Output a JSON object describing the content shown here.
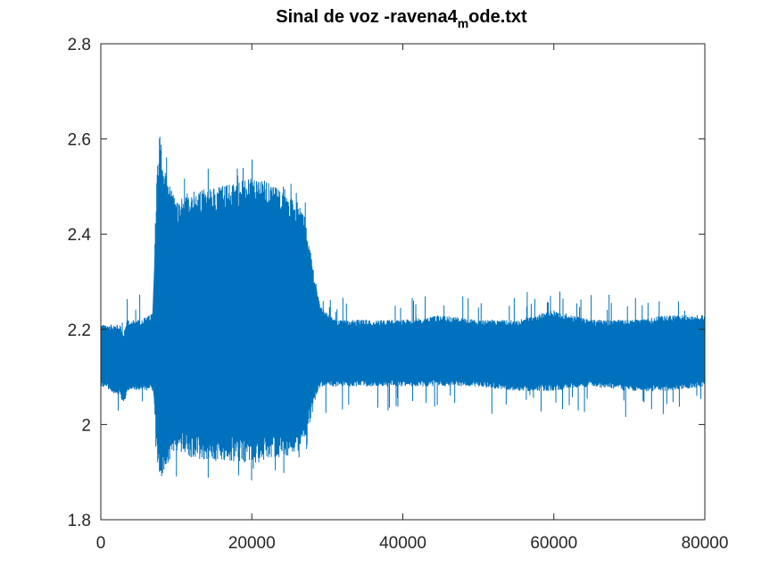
{
  "chart_data": {
    "type": "line",
    "title": {
      "main": "Sinal de voz -ravena4",
      "subscript": "m",
      "suffix": "ode.txt"
    },
    "xlabel": "",
    "ylabel": "",
    "xlim": [
      0,
      80000
    ],
    "ylim": [
      1.8,
      2.8
    ],
    "xticks": [
      0,
      20000,
      40000,
      60000,
      80000
    ],
    "xtick_labels": [
      "0",
      "20000",
      "40000",
      "60000",
      "80000"
    ],
    "yticks": [
      1.8,
      2.0,
      2.2,
      2.4,
      2.6,
      2.8
    ],
    "ytick_labels": [
      "1.8",
      "2",
      "2.2",
      "2.4",
      "2.6",
      "2.8"
    ],
    "grid": false,
    "box": true,
    "series_color": "#0072bd",
    "series": [
      {
        "envelope": {
          "x": [
            0,
            2500,
            3000,
            3500,
            5000,
            6500,
            7000,
            7200,
            7500,
            7800,
            8500,
            10000,
            12000,
            15000,
            18000,
            21000,
            24000,
            26000,
            27000,
            28000,
            28800,
            29500,
            31000,
            35000,
            40000,
            45000,
            50000,
            55000,
            60000,
            65000,
            70000,
            75000,
            80000
          ],
          "upper": [
            2.21,
            2.21,
            2.19,
            2.22,
            2.22,
            2.23,
            2.24,
            2.43,
            2.55,
            2.62,
            2.53,
            2.47,
            2.49,
            2.5,
            2.51,
            2.52,
            2.49,
            2.47,
            2.44,
            2.34,
            2.27,
            2.24,
            2.22,
            2.22,
            2.22,
            2.23,
            2.22,
            2.22,
            2.24,
            2.22,
            2.22,
            2.23,
            2.23
          ],
          "lower": [
            2.08,
            2.06,
            2.04,
            2.07,
            2.07,
            2.07,
            2.07,
            1.99,
            1.92,
            1.87,
            1.91,
            1.94,
            1.93,
            1.92,
            1.92,
            1.92,
            1.93,
            1.94,
            1.97,
            2.02,
            2.07,
            2.08,
            2.08,
            2.08,
            2.08,
            2.08,
            2.08,
            2.07,
            2.07,
            2.08,
            2.07,
            2.07,
            2.08
          ]
        }
      }
    ]
  }
}
